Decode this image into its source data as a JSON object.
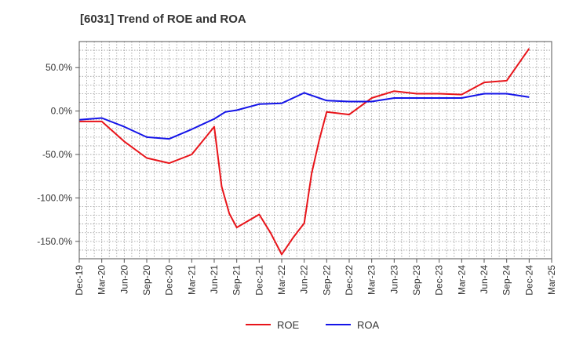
{
  "title": "[6031]  Trend of ROE and ROA",
  "chart_data": {
    "type": "line",
    "title": "[6031]  Trend of ROE and ROA",
    "xlabel": "",
    "ylabel": "",
    "grid": true,
    "legend_position": "bottom",
    "ylim": [
      -170,
      80
    ],
    "y_ticks": [
      50,
      0,
      -50,
      -100,
      -150
    ],
    "y_tick_labels": [
      "50.0%",
      "0.0%",
      "-50.0%",
      "-100.0%",
      "-150.0%"
    ],
    "x_tick_labels": [
      "Dec-19",
      "Mar-20",
      "Jun-20",
      "Sep-20",
      "Dec-20",
      "Mar-21",
      "Jun-21",
      "Sep-21",
      "Dec-21",
      "Mar-22",
      "Jun-22",
      "Sep-22",
      "Dec-22",
      "Mar-23",
      "Jun-23",
      "Sep-23",
      "Dec-23",
      "Mar-24",
      "Jun-24",
      "Sep-24",
      "Dec-24",
      "Mar-25"
    ],
    "series": [
      {
        "name": "ROE",
        "color": "#e8141a",
        "points": [
          [
            0,
            -12
          ],
          [
            1,
            -12
          ],
          [
            2,
            -35
          ],
          [
            3,
            -54
          ],
          [
            4,
            -60
          ],
          [
            5,
            -50
          ],
          [
            6,
            -18
          ],
          [
            6.33,
            -87
          ],
          [
            6.67,
            -118
          ],
          [
            7,
            -134
          ],
          [
            8,
            -119
          ],
          [
            8.5,
            -140
          ],
          [
            9,
            -165
          ],
          [
            9.5,
            -146
          ],
          [
            10,
            -129
          ],
          [
            10.33,
            -72
          ],
          [
            10.67,
            -33
          ],
          [
            11,
            -1
          ],
          [
            12,
            -4
          ],
          [
            13,
            15
          ],
          [
            14,
            23
          ],
          [
            15,
            20
          ],
          [
            16,
            20
          ],
          [
            17,
            19
          ],
          [
            18,
            33
          ],
          [
            19,
            35
          ],
          [
            20,
            72
          ]
        ]
      },
      {
        "name": "ROA",
        "color": "#1414e8",
        "points": [
          [
            0,
            -10
          ],
          [
            1,
            -8
          ],
          [
            2,
            -18
          ],
          [
            3,
            -30
          ],
          [
            4,
            -32
          ],
          [
            5,
            -21
          ],
          [
            6,
            -9
          ],
          [
            6.5,
            -1
          ],
          [
            7,
            1
          ],
          [
            8,
            8
          ],
          [
            9,
            9
          ],
          [
            10,
            21
          ],
          [
            11,
            12
          ],
          [
            12,
            11
          ],
          [
            13,
            11
          ],
          [
            14,
            15
          ],
          [
            15,
            15
          ],
          [
            16,
            15
          ],
          [
            17,
            15
          ],
          [
            18,
            20
          ],
          [
            19,
            20
          ],
          [
            20,
            16
          ]
        ]
      }
    ]
  }
}
